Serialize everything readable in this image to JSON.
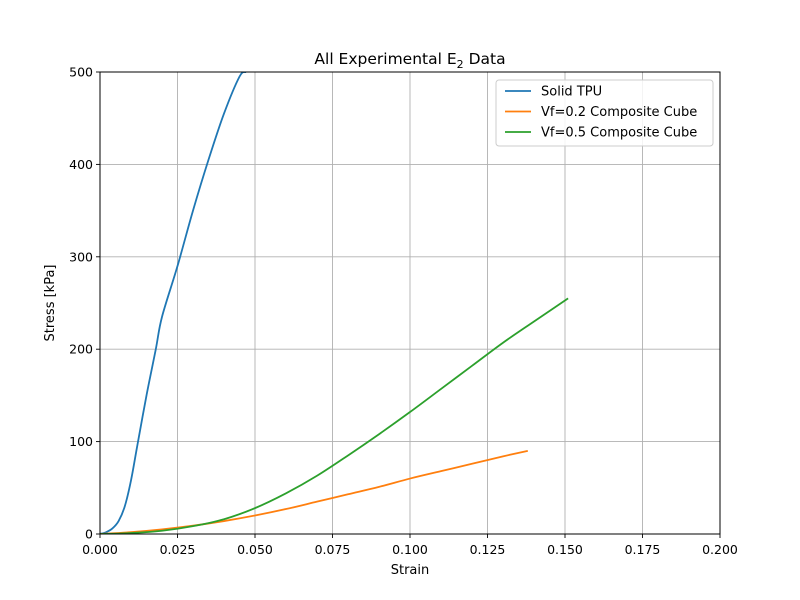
{
  "chart_data": {
    "type": "line",
    "title_main": "All Experimental E",
    "title_sub": "2",
    "title_tail": " Data",
    "xlabel": "Strain",
    "ylabel": "Stress [kPa]",
    "xlim": [
      0,
      0.2
    ],
    "ylim": [
      0,
      500
    ],
    "xticks": [
      0,
      0.025,
      0.05,
      0.075,
      0.1,
      0.125,
      0.15,
      0.175,
      0.2
    ],
    "xtick_labels": [
      "0.000",
      "0.025",
      "0.050",
      "0.075",
      "0.100",
      "0.125",
      "0.150",
      "0.175",
      "0.200"
    ],
    "yticks": [
      0,
      100,
      200,
      300,
      400,
      500
    ],
    "ytick_labels": [
      "0",
      "100",
      "200",
      "300",
      "400",
      "500"
    ],
    "grid": true,
    "legend_position": "top-right",
    "series": [
      {
        "name": "Solid TPU",
        "color": "#1f77b4",
        "x": [
          0,
          0.002,
          0.004,
          0.006,
          0.008,
          0.01,
          0.012,
          0.015,
          0.018,
          0.02,
          0.025,
          0.03,
          0.035,
          0.04,
          0.045,
          0.047
        ],
        "y": [
          0,
          2,
          6,
          14,
          30,
          58,
          95,
          150,
          200,
          235,
          290,
          350,
          405,
          455,
          495,
          500
        ]
      },
      {
        "name": "Vf=0.2 Composite Cube",
        "color": "#ff7f0e",
        "x": [
          0,
          0.01,
          0.02,
          0.03,
          0.04,
          0.05,
          0.06,
          0.07,
          0.08,
          0.09,
          0.1,
          0.11,
          0.12,
          0.13,
          0.138
        ],
        "y": [
          0,
          2,
          5,
          9,
          14,
          20,
          27,
          35,
          43,
          51,
          60,
          68,
          76,
          84,
          90
        ]
      },
      {
        "name": "Vf=0.5 Composite Cube",
        "color": "#2ca02c",
        "x": [
          0,
          0.01,
          0.02,
          0.03,
          0.04,
          0.05,
          0.06,
          0.07,
          0.08,
          0.09,
          0.1,
          0.11,
          0.12,
          0.13,
          0.14,
          0.151
        ],
        "y": [
          0,
          1,
          3.5,
          8.5,
          16,
          28,
          44,
          63,
          85,
          108,
          132,
          157,
          182,
          207,
          230,
          255
        ]
      }
    ]
  }
}
